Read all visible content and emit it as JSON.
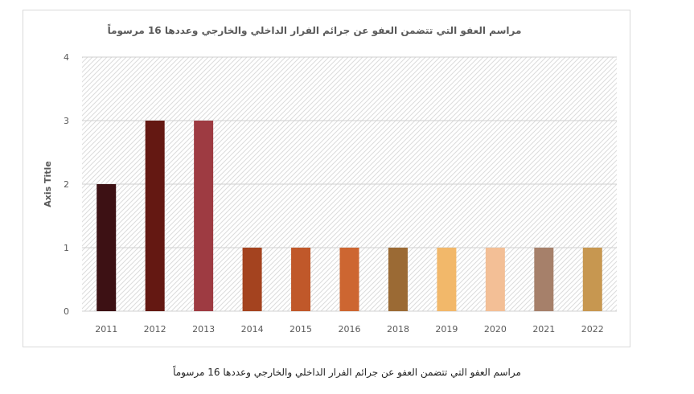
{
  "chart_data": {
    "type": "bar",
    "title": "مراسم العفو التي تتضمن العفو عن جرائم الفرار الداخلي والخارجي وعددها 16 مرسوماً",
    "xlabel": "",
    "ylabel": "Axis Title",
    "ylim": [
      0,
      4
    ],
    "yticks": [
      0,
      1,
      2,
      3,
      4
    ],
    "grid": true,
    "legend": "none",
    "categories": [
      "2011",
      "2012",
      "2013",
      "2014",
      "2015",
      "2016",
      "2018",
      "2019",
      "2020",
      "2021",
      "2022"
    ],
    "values": [
      2,
      3,
      3,
      1,
      1,
      1,
      1,
      1,
      1,
      1,
      1
    ],
    "colors": [
      "#3d1114",
      "#641812",
      "#9e3b42",
      "#a4431f",
      "#c0582a",
      "#cd6631",
      "#9b6a34",
      "#f2b86a",
      "#f3bf96",
      "#a6806a",
      "#c79750"
    ]
  },
  "caption": "مراسم العفو التي تتضمن العفو عن جرائم الفرار الداخلي والخارجي وعددها 16 مرسوماً"
}
